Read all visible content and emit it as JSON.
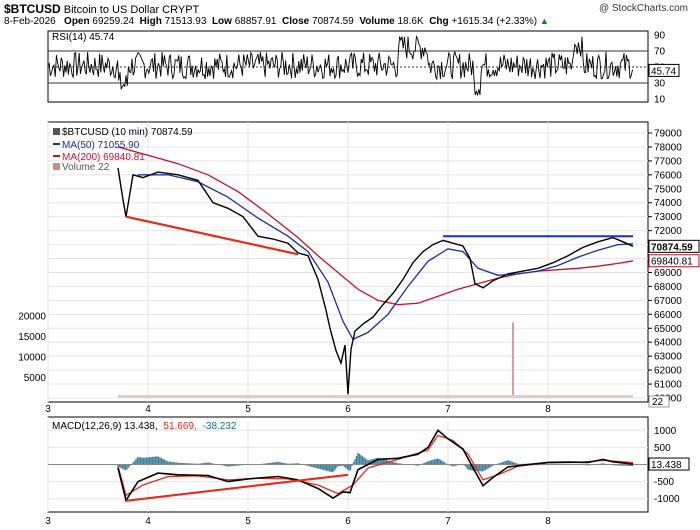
{
  "header": {
    "symbol": "$BTCUSD",
    "name": "Bitcoin to US Dollar",
    "exchange": "CRYPT",
    "date": "8-Feb-2026",
    "open_label": "Open",
    "open": "69259.24",
    "high_label": "High",
    "high": "71513.93",
    "low_label": "Low",
    "low": "68857.91",
    "close_label": "Close",
    "close": "70874.59",
    "volume_label": "Volume",
    "volume": "18.6K",
    "chg_label": "Chg",
    "chg": "+1615.34 (+2.33%)",
    "chg_arrow": "▲",
    "brand": "@ StockCharts.com"
  },
  "chart_data": [
    {
      "type": "line",
      "panel": "rsi",
      "title": "RSI(14) 45.74",
      "series": [
        {
          "name": "RSI(14)",
          "last": 45.74
        }
      ],
      "ylim": [
        10,
        90
      ],
      "ticks": [
        "90",
        "70",
        "50",
        "30",
        "10"
      ],
      "reference_lines": [
        70,
        50,
        30
      ],
      "last_label": "45.74"
    },
    {
      "type": "line",
      "panel": "price",
      "legend": [
        "$BTCUSD (10 min) 70874.59",
        "MA(50) 71055.90",
        "MA(200) 69840.81",
        "Volume 22"
      ],
      "colors": {
        "price": "#000000",
        "ma50": "#1f2ea0",
        "ma200": "#c41230",
        "volume": "#cc8888",
        "trendline": "#e8291c",
        "resistance": "#1a2fd0"
      },
      "x_ticks": [
        "3",
        "4",
        "5",
        "6",
        "7",
        "8"
      ],
      "ylim": [
        60000,
        79000
      ],
      "y_ticks": [
        "79000",
        "78000",
        "77000",
        "76000",
        "75000",
        "74000",
        "73000",
        "72000",
        "71000",
        "70000",
        "69000",
        "68000",
        "67000",
        "66000",
        "65000",
        "64000",
        "63000",
        "62000",
        "61000",
        "60000"
      ],
      "volume_ticks": [
        "20000",
        "15000",
        "10000",
        "5000"
      ],
      "price_label": "70874.59",
      "ma200_label": "69840.81",
      "volume_label": "22",
      "points": [
        [
          3.7,
          76500
        ],
        [
          3.75,
          74200
        ],
        [
          3.78,
          73000
        ],
        [
          3.85,
          76000
        ],
        [
          3.95,
          75800
        ],
        [
          4.1,
          76200
        ],
        [
          4.3,
          76000
        ],
        [
          4.5,
          75600
        ],
        [
          4.65,
          74000
        ],
        [
          4.8,
          73600
        ],
        [
          4.95,
          73000
        ],
        [
          5.1,
          71600
        ],
        [
          5.25,
          71400
        ],
        [
          5.4,
          71100
        ],
        [
          5.5,
          70400
        ],
        [
          5.6,
          70200
        ],
        [
          5.7,
          68500
        ],
        [
          5.78,
          66300
        ],
        [
          5.82,
          65000
        ],
        [
          5.88,
          63400
        ],
        [
          5.93,
          62500
        ],
        [
          5.97,
          63800
        ],
        [
          6.0,
          60300
        ],
        [
          6.03,
          63500
        ],
        [
          6.07,
          64800
        ],
        [
          6.15,
          65300
        ],
        [
          6.25,
          65800
        ],
        [
          6.35,
          66700
        ],
        [
          6.45,
          67500
        ],
        [
          6.55,
          68500
        ],
        [
          6.65,
          69700
        ],
        [
          6.75,
          70500
        ],
        [
          6.85,
          71000
        ],
        [
          6.95,
          71300
        ],
        [
          7.05,
          71100
        ],
        [
          7.15,
          70900
        ],
        [
          7.22,
          70000
        ],
        [
          7.27,
          68200
        ],
        [
          7.35,
          67900
        ],
        [
          7.45,
          68400
        ],
        [
          7.6,
          68900
        ],
        [
          7.75,
          69100
        ],
        [
          7.9,
          69300
        ],
        [
          8.05,
          69700
        ],
        [
          8.2,
          70200
        ],
        [
          8.35,
          70800
        ],
        [
          8.5,
          71200
        ],
        [
          8.65,
          71500
        ],
        [
          8.75,
          71200
        ],
        [
          8.85,
          70875
        ]
      ],
      "ma50": [
        [
          3.9,
          76000
        ],
        [
          4.2,
          76000
        ],
        [
          4.5,
          75500
        ],
        [
          4.8,
          74400
        ],
        [
          5.1,
          72900
        ],
        [
          5.4,
          71600
        ],
        [
          5.6,
          70500
        ],
        [
          5.8,
          68300
        ],
        [
          5.95,
          65500
        ],
        [
          6.05,
          64200
        ],
        [
          6.2,
          64700
        ],
        [
          6.4,
          66000
        ],
        [
          6.6,
          68000
        ],
        [
          6.8,
          69800
        ],
        [
          7.0,
          70700
        ],
        [
          7.15,
          70500
        ],
        [
          7.3,
          69300
        ],
        [
          7.5,
          68800
        ],
        [
          7.7,
          68900
        ],
        [
          7.9,
          69100
        ],
        [
          8.1,
          69500
        ],
        [
          8.3,
          70100
        ],
        [
          8.5,
          70600
        ],
        [
          8.7,
          71000
        ],
        [
          8.85,
          71055
        ]
      ],
      "ma200": [
        [
          3.7,
          78000
        ],
        [
          4.0,
          77400
        ],
        [
          4.3,
          76800
        ],
        [
          4.6,
          76000
        ],
        [
          4.9,
          74800
        ],
        [
          5.2,
          73200
        ],
        [
          5.5,
          71500
        ],
        [
          5.7,
          70200
        ],
        [
          5.9,
          69000
        ],
        [
          6.1,
          67800
        ],
        [
          6.3,
          67000
        ],
        [
          6.5,
          66700
        ],
        [
          6.7,
          66800
        ],
        [
          6.9,
          67300
        ],
        [
          7.1,
          67800
        ],
        [
          7.3,
          68200
        ],
        [
          7.5,
          68600
        ],
        [
          7.7,
          68900
        ],
        [
          7.9,
          69100
        ],
        [
          8.1,
          69200
        ],
        [
          8.3,
          69300
        ],
        [
          8.5,
          69450
        ],
        [
          8.7,
          69650
        ],
        [
          8.85,
          69840
        ]
      ],
      "trendline": [
        [
          3.78,
          73000
        ],
        [
          5.5,
          70300
        ]
      ],
      "resistance": [
        [
          6.95,
          71600
        ],
        [
          8.85,
          71600
        ]
      ],
      "volume": [
        [
          3.8,
          300
        ],
        [
          4.3,
          250
        ],
        [
          4.8,
          280
        ],
        [
          5.3,
          300
        ],
        [
          5.8,
          600
        ],
        [
          6.0,
          1500
        ],
        [
          6.3,
          400
        ],
        [
          6.7,
          350
        ],
        [
          7.2,
          300
        ],
        [
          7.65,
          18500
        ],
        [
          8.1,
          250
        ],
        [
          8.6,
          200
        ]
      ]
    },
    {
      "type": "line",
      "panel": "macd",
      "title": "MACD(12,26,9) 13.438, 51.669, -38.232",
      "title_parts": [
        "MACD(12,26,9) 13.438,",
        "51.669,",
        "-38.232"
      ],
      "ylim": [
        -1300,
        1300
      ],
      "y_ticks": [
        "1000",
        "500",
        "0",
        "-500",
        "-1000"
      ],
      "x_ticks": [
        "3",
        "4",
        "5",
        "6",
        "7",
        "8"
      ],
      "last_label": "13.438",
      "series": [
        {
          "name": "MACD",
          "values": [
            [
              3.7,
              -100
            ],
            [
              3.78,
              -1050
            ],
            [
              3.9,
              -500
            ],
            [
              4.1,
              -250
            ],
            [
              4.3,
              -300
            ],
            [
              4.6,
              -320
            ],
            [
              4.8,
              -500
            ],
            [
              5.0,
              -420
            ],
            [
              5.3,
              -350
            ],
            [
              5.5,
              -450
            ],
            [
              5.7,
              -700
            ],
            [
              5.85,
              -980
            ],
            [
              5.95,
              -800
            ],
            [
              6.02,
              -820
            ],
            [
              6.1,
              -150
            ],
            [
              6.3,
              150
            ],
            [
              6.5,
              180
            ],
            [
              6.7,
              300
            ],
            [
              6.8,
              500
            ],
            [
              6.9,
              1000
            ],
            [
              7.0,
              750
            ],
            [
              7.15,
              450
            ],
            [
              7.25,
              -100
            ],
            [
              7.35,
              -620
            ],
            [
              7.45,
              -380
            ],
            [
              7.6,
              -70
            ],
            [
              7.8,
              0
            ],
            [
              8.0,
              60
            ],
            [
              8.2,
              70
            ],
            [
              8.4,
              60
            ],
            [
              8.55,
              150
            ],
            [
              8.65,
              80
            ],
            [
              8.85,
              13
            ]
          ]
        },
        {
          "name": "Signal",
          "values": [
            [
              3.7,
              -50
            ],
            [
              3.78,
              -900
            ],
            [
              3.95,
              -600
            ],
            [
              4.2,
              -350
            ],
            [
              4.5,
              -330
            ],
            [
              4.8,
              -450
            ],
            [
              5.1,
              -400
            ],
            [
              5.4,
              -420
            ],
            [
              5.7,
              -600
            ],
            [
              5.9,
              -850
            ],
            [
              6.05,
              -600
            ],
            [
              6.2,
              -100
            ],
            [
              6.5,
              150
            ],
            [
              6.8,
              420
            ],
            [
              6.9,
              850
            ],
            [
              7.05,
              700
            ],
            [
              7.2,
              300
            ],
            [
              7.35,
              -450
            ],
            [
              7.5,
              -300
            ],
            [
              7.7,
              -50
            ],
            [
              8.0,
              50
            ],
            [
              8.3,
              60
            ],
            [
              8.55,
              120
            ],
            [
              8.7,
              90
            ],
            [
              8.85,
              51.7
            ]
          ]
        }
      ],
      "histogram_last": -38.232,
      "trendline": [
        [
          3.78,
          -1060
        ],
        [
          6.0,
          -300
        ]
      ]
    }
  ]
}
